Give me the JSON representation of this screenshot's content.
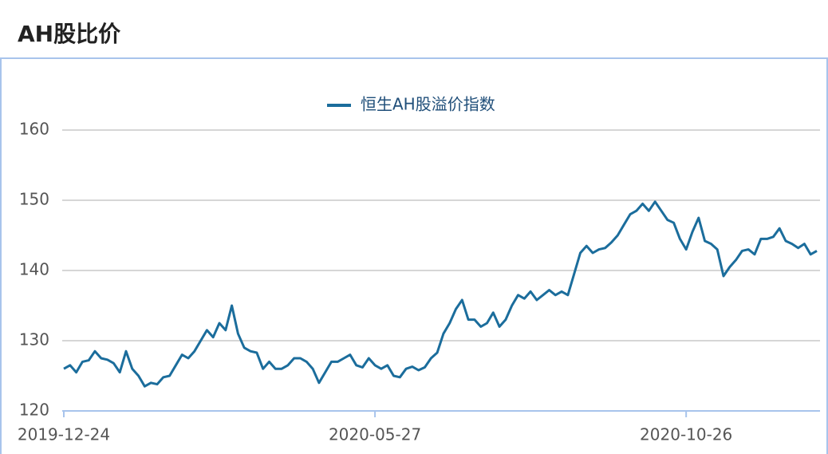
{
  "chart_data": {
    "type": "line",
    "title": "AH股比价",
    "categories": [
      "2019-12-24",
      null,
      null,
      null,
      null,
      null,
      null,
      null,
      null,
      null,
      null,
      null,
      null,
      null,
      null,
      null,
      null,
      null,
      null,
      null,
      null,
      null,
      null,
      null,
      null,
      null,
      null,
      null,
      null,
      null,
      null,
      null,
      null,
      null,
      null,
      null,
      null,
      null,
      null,
      null,
      null,
      null,
      null,
      null,
      null,
      null,
      null,
      null,
      null,
      null,
      "2020-05-27",
      null,
      null,
      null,
      null,
      null,
      null,
      null,
      null,
      null,
      null,
      null,
      null,
      null,
      null,
      null,
      null,
      null,
      null,
      null,
      null,
      null,
      null,
      null,
      null,
      null,
      null,
      null,
      null,
      null,
      null,
      null,
      null,
      null,
      null,
      null,
      null,
      null,
      null,
      null,
      null,
      null,
      null,
      null,
      null,
      null,
      null,
      null,
      null,
      null,
      "2020-10-26",
      null,
      null,
      null,
      null,
      null,
      null,
      null,
      null,
      null,
      null,
      null,
      null,
      null,
      null,
      null,
      null,
      null,
      null,
      null,
      null,
      null
    ],
    "series": [
      {
        "name": "恒生AH股溢价指数",
        "color": "#1b6d9c",
        "values": [
          126,
          126.5,
          125.5,
          127,
          127.2,
          128.5,
          127.5,
          127.3,
          126.8,
          125.5,
          128.5,
          126,
          125,
          123.5,
          124,
          123.8,
          124.8,
          125,
          126.5,
          128,
          127.5,
          128.5,
          130,
          131.5,
          130.5,
          132.5,
          131.5,
          135,
          131,
          129,
          128.5,
          128.3,
          126,
          127,
          126,
          126,
          126.5,
          127.5,
          127.5,
          127,
          126,
          124,
          125.5,
          127,
          127,
          127.5,
          128,
          126.5,
          126.2,
          127.5,
          126.5,
          126,
          126.5,
          125,
          124.8,
          126,
          126.3,
          125.8,
          126.2,
          127.5,
          128.3,
          131,
          132.5,
          134.5,
          135.8,
          133,
          133,
          132,
          132.5,
          134,
          132,
          133,
          135,
          136.5,
          136,
          137,
          135.8,
          136.5,
          137.2,
          136.5,
          137,
          136.5,
          139.5,
          142.5,
          143.5,
          142.5,
          143,
          143.2,
          144,
          145,
          146.5,
          148,
          148.5,
          149.5,
          148.5,
          149.8,
          148.5,
          147.2,
          146.8,
          144.5,
          143,
          145.5,
          147.5,
          144.2,
          143.8,
          143,
          139.2,
          140.5,
          141.5,
          142.8,
          143,
          142.3,
          144.5,
          144.5,
          144.8,
          146,
          144.2,
          143.8,
          143.2,
          143.8,
          142.3,
          142.8
        ]
      }
    ],
    "ylim": [
      120,
      160
    ],
    "yticks": [
      120,
      130,
      140,
      150,
      160
    ],
    "grid": true
  }
}
